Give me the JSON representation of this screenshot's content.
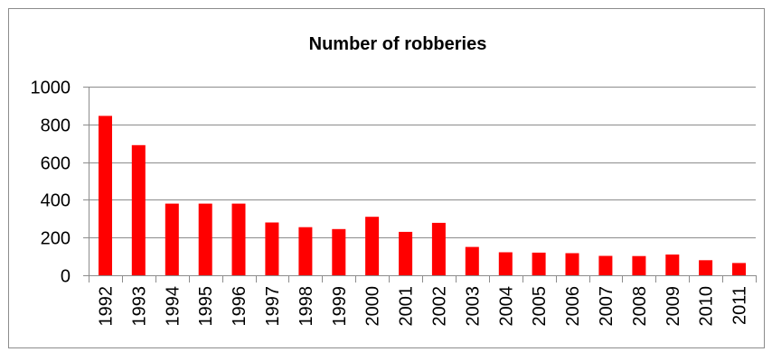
{
  "chart_data": {
    "type": "bar",
    "title": "Number of robberies",
    "xlabel": "",
    "ylabel": "",
    "categories": [
      "1992",
      "1993",
      "1994",
      "1995",
      "1996",
      "1997",
      "1998",
      "1999",
      "2000",
      "2001",
      "2002",
      "2003",
      "2004",
      "2005",
      "2006",
      "2007",
      "2008",
      "2009",
      "2010",
      "2011"
    ],
    "values": [
      845,
      690,
      380,
      380,
      380,
      280,
      255,
      245,
      310,
      230,
      278,
      150,
      122,
      120,
      117,
      103,
      102,
      110,
      80,
      65
    ],
    "ylim": [
      0,
      1000
    ],
    "yticks": [
      "0",
      "200",
      "400",
      "600",
      "800",
      "1000"
    ],
    "grid": true,
    "legend": "none",
    "bar_color": "#ff0000"
  }
}
